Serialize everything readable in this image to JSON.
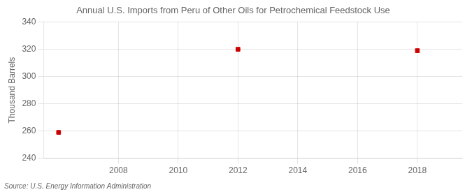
{
  "chart_data": {
    "type": "scatter",
    "title": "Annual U.S. Imports from Peru of Other Oils for Petrochemical Feedstock Use",
    "ylabel": "Thousand Barrels",
    "annotations": [
      "Source: U.S. Energy Information Administration"
    ],
    "x": [
      2006,
      2012,
      2018
    ],
    "values": [
      259,
      320,
      319
    ],
    "color": "#cc0000",
    "marker": "square",
    "xlim": [
      2005.5,
      2019.5
    ],
    "ylim": [
      240,
      340
    ],
    "xticks": [
      2008,
      2010,
      2012,
      2014,
      2016,
      2018
    ],
    "yticks": [
      240,
      260,
      280,
      300,
      320,
      340
    ],
    "grid": true,
    "legend": false
  }
}
